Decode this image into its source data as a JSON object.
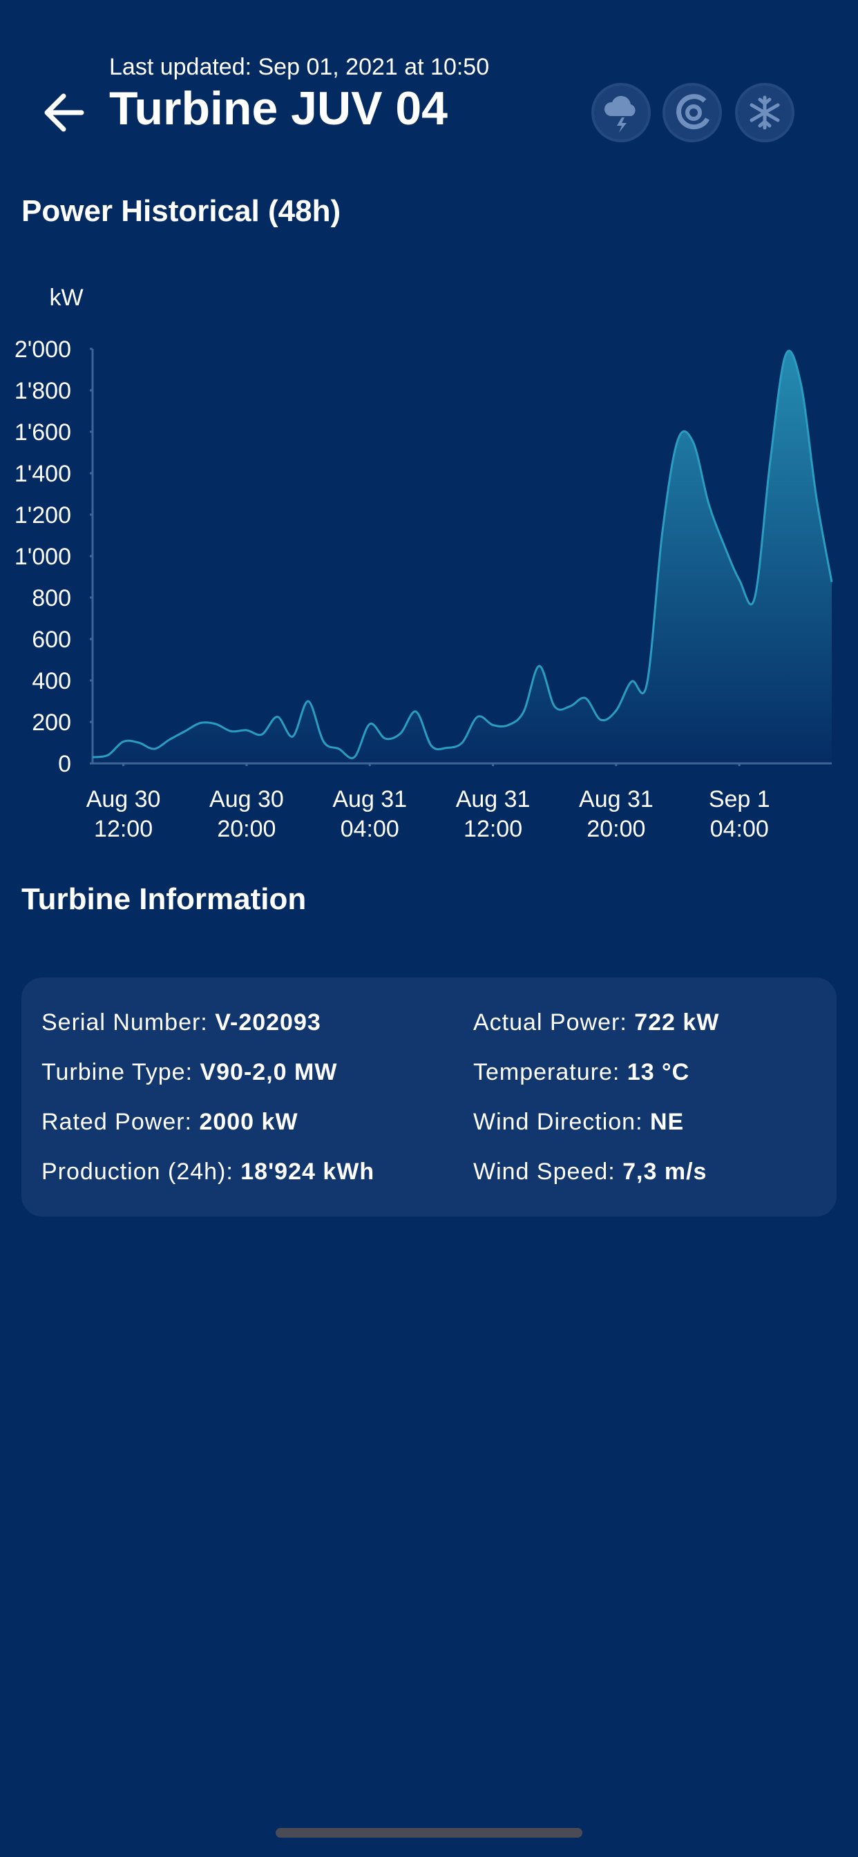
{
  "header": {
    "updated": "Last updated: Sep 01, 2021 at 10:50",
    "title": "Turbine JUV 04"
  },
  "chart_section": "Power Historical (48h)",
  "chart_data": {
    "type": "area",
    "ylabel": "kW",
    "color": "#2a9dc0",
    "x": [
      "Aug 30 10:00",
      "Aug 30 11:00",
      "Aug 30 12:00",
      "Aug 30 13:00",
      "Aug 30 14:00",
      "Aug 30 15:00",
      "Aug 30 16:00",
      "Aug 30 17:00",
      "Aug 30 18:00",
      "Aug 30 19:00",
      "Aug 30 20:00",
      "Aug 30 21:00",
      "Aug 30 22:00",
      "Aug 30 23:00",
      "Aug 31 00:00",
      "Aug 31 01:00",
      "Aug 31 02:00",
      "Aug 31 03:00",
      "Aug 31 04:00",
      "Aug 31 05:00",
      "Aug 31 06:00",
      "Aug 31 07:00",
      "Aug 31 08:00",
      "Aug 31 09:00",
      "Aug 31 10:00",
      "Aug 31 11:00",
      "Aug 31 12:00",
      "Aug 31 13:00",
      "Aug 31 14:00",
      "Aug 31 15:00",
      "Aug 31 16:00",
      "Aug 31 17:00",
      "Aug 31 18:00",
      "Aug 31 19:00",
      "Aug 31 20:00",
      "Aug 31 21:00",
      "Aug 31 22:00",
      "Aug 31 23:00",
      "Sep 1 00:00",
      "Sep 1 01:00",
      "Sep 1 02:00",
      "Sep 1 03:00",
      "Sep 1 04:00",
      "Sep 1 05:00",
      "Sep 1 06:00",
      "Sep 1 07:00",
      "Sep 1 08:00",
      "Sep 1 09:00",
      "Sep 1 10:00"
    ],
    "values": [
      30,
      40,
      105,
      100,
      70,
      115,
      155,
      195,
      190,
      155,
      160,
      140,
      225,
      130,
      300,
      105,
      70,
      30,
      190,
      120,
      145,
      250,
      85,
      75,
      100,
      225,
      185,
      185,
      250,
      470,
      275,
      275,
      315,
      210,
      255,
      395,
      385,
      1115,
      1560,
      1550,
      1255,
      1055,
      885,
      800,
      1455,
      1970,
      1830,
      1285,
      875
    ],
    "xlim": [
      "Aug 30 10:00",
      "Sep 1 10:00"
    ],
    "xticks": [
      "Aug 30 12:00",
      "Aug 30 20:00",
      "Aug 31 04:00",
      "Aug 31 12:00",
      "Aug 31 20:00",
      "Sep 1 04:00"
    ],
    "ylim": [
      0,
      2000
    ],
    "yticks": [
      0,
      200,
      400,
      600,
      800,
      {
        "value": 1000,
        "label": "1'000"
      },
      {
        "value": 1200,
        "label": "1'200"
      },
      {
        "value": 1400,
        "label": "1'400"
      },
      {
        "value": 1600,
        "label": "1'600"
      },
      {
        "value": 1800,
        "label": "1'800"
      },
      {
        "value": 2000,
        "label": "2'000"
      }
    ],
    "grid": false
  },
  "info_section": "Turbine Information",
  "info": [
    [
      {
        "label": "Serial Number:",
        "value": "V-202093"
      },
      {
        "label": "Actual Power:",
        "value": "722 kW"
      }
    ],
    [
      {
        "label": "Turbine Type:",
        "value": "V90-2,0 MW"
      },
      {
        "label": "Temperature:",
        "value": "13 °C"
      }
    ],
    [
      {
        "label": "Rated Power:",
        "value": "2000 kW"
      },
      {
        "label": "Wind Direction:",
        "value": "NE"
      }
    ],
    [
      {
        "label": "Production (24h):",
        "value": "18'924 kWh"
      },
      {
        "label": "Wind Speed:",
        "value": "7,3 m/s"
      }
    ]
  ]
}
